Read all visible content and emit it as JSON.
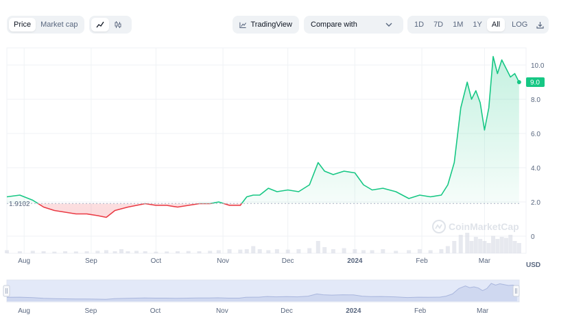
{
  "toolbar": {
    "price_label": "Price",
    "market_cap_label": "Market cap",
    "tradingview_label": "TradingView",
    "compare_label": "Compare with",
    "ranges": [
      "1D",
      "7D",
      "1M",
      "1Y",
      "All"
    ],
    "active_range": "All",
    "log_label": "LOG",
    "icons": [
      "line-chart-icon",
      "candlestick-icon",
      "tradingview-icon",
      "chevron-down-icon",
      "download-icon"
    ]
  },
  "watermark": "CoinMarketCap",
  "currency_label": "USD",
  "colors": {
    "up": "#16c784",
    "down": "#ea3943",
    "grid": "#eff2f5",
    "text": "#58667e",
    "volume": "#d7dbe4",
    "navigator": "#e3e9f8"
  },
  "chart_data": {
    "type": "line",
    "title": "",
    "xlabel": "",
    "ylabel": "",
    "x_start": "2023-07-24",
    "x_end": "2024-03-18",
    "x_ticks": [
      {
        "date": "2023-08-01",
        "label": "Aug"
      },
      {
        "date": "2023-09-01",
        "label": "Sep"
      },
      {
        "date": "2023-10-01",
        "label": "Oct"
      },
      {
        "date": "2023-11-01",
        "label": "Nov"
      },
      {
        "date": "2023-12-01",
        "label": "Dec"
      },
      {
        "date": "2024-01-01",
        "label": "2024",
        "bold": true
      },
      {
        "date": "2024-02-01",
        "label": "Feb"
      },
      {
        "date": "2024-03-01",
        "label": "Mar"
      }
    ],
    "y_ticks": [
      0,
      2.0,
      4.0,
      6.0,
      8.0,
      10.0
    ],
    "ylim": [
      -1.0,
      11.0
    ],
    "baseline": 1.9102,
    "baseline_label": "1.9102",
    "current_price": 9.0,
    "current_price_label": "9.0",
    "series": [
      {
        "dates": [
          "2023-07-24",
          "2023-07-30",
          "2023-08-05",
          "2023-08-10",
          "2023-08-15",
          "2023-08-20",
          "2023-08-25",
          "2023-08-30",
          "2023-09-04",
          "2023-09-08",
          "2023-09-12",
          "2023-09-15",
          "2023-09-18",
          "2023-09-22",
          "2023-09-26",
          "2023-10-01",
          "2023-10-06",
          "2023-10-11",
          "2023-10-16",
          "2023-10-21",
          "2023-10-26",
          "2023-10-30",
          "2023-11-04",
          "2023-11-09",
          "2023-11-12",
          "2023-11-15",
          "2023-11-18",
          "2023-11-22",
          "2023-11-26",
          "2023-12-01",
          "2023-12-06",
          "2023-12-11",
          "2023-12-15",
          "2023-12-18",
          "2023-12-22",
          "2023-12-27",
          "2024-01-01",
          "2024-01-05",
          "2024-01-09",
          "2024-01-14",
          "2024-01-20",
          "2024-01-26",
          "2024-01-31",
          "2024-02-05",
          "2024-02-10",
          "2024-02-13",
          "2024-02-16",
          "2024-02-19",
          "2024-02-22",
          "2024-02-24",
          "2024-02-26",
          "2024-02-28",
          "2024-03-01",
          "2024-03-03",
          "2024-03-05",
          "2024-03-07",
          "2024-03-09",
          "2024-03-11",
          "2024-03-13",
          "2024-03-15",
          "2024-03-17"
        ],
        "values": [
          2.3,
          2.4,
          2.1,
          1.7,
          1.5,
          1.4,
          1.3,
          1.3,
          1.2,
          1.1,
          1.5,
          1.6,
          1.7,
          1.8,
          1.9,
          1.8,
          1.8,
          1.7,
          1.8,
          1.9,
          1.9,
          2.0,
          1.8,
          1.8,
          2.3,
          2.4,
          2.4,
          2.8,
          2.6,
          2.7,
          2.6,
          3.0,
          4.3,
          3.8,
          3.6,
          3.8,
          3.7,
          3.0,
          2.7,
          2.8,
          2.6,
          2.2,
          2.4,
          2.3,
          2.4,
          3.0,
          4.3,
          7.5,
          9.0,
          8.0,
          8.5,
          7.8,
          6.2,
          7.5,
          10.5,
          9.5,
          10.3,
          9.8,
          9.3,
          9.5,
          9.0
        ]
      }
    ],
    "volume": [
      0.15,
      0.1,
      0.12,
      0.1,
      0.08,
      0.1,
      0.09,
      0.1,
      0.12,
      0.15,
      0.1,
      0.2,
      0.1,
      0.12,
      0.1,
      0.08,
      0.09,
      0.1,
      0.11,
      0.1,
      0.12,
      0.15,
      0.2,
      0.18,
      0.2,
      0.35,
      0.2,
      0.15,
      0.2,
      0.18,
      0.2,
      0.25,
      0.6,
      0.3,
      0.2,
      0.25,
      0.2,
      0.15,
      0.15,
      0.2,
      0.12,
      0.15,
      0.2,
      0.15,
      0.2,
      0.35,
      0.6,
      0.9,
      1.0,
      0.6,
      0.8,
      0.7,
      0.6,
      0.5,
      0.85,
      0.7,
      0.8,
      0.75,
      0.9,
      0.6,
      0.5
    ]
  }
}
